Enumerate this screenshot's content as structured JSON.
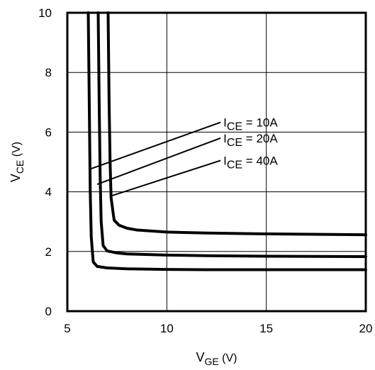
{
  "chart_data": {
    "type": "line",
    "xlabel": {
      "main": "V",
      "sub": "GE",
      "unit": " (V)"
    },
    "ylabel": {
      "main": "V",
      "sub": "CE",
      "unit": " (V)"
    },
    "xlim": [
      5,
      20
    ],
    "ylim": [
      0,
      10
    ],
    "xticks": [
      "5",
      "10",
      "15",
      "20"
    ],
    "yticks": [
      "0",
      "2",
      "4",
      "6",
      "8",
      "10"
    ],
    "grid": true,
    "series": [
      {
        "name": "I_CE = 10A",
        "label": {
          "main": "I",
          "sub": "CE",
          "rest": " = 10A"
        },
        "x": [
          6.05,
          6.1,
          6.15,
          6.2,
          6.3,
          6.5,
          7.0,
          8.0,
          10.0,
          12.0,
          15.0,
          20.0
        ],
        "y": [
          10.0,
          7.0,
          4.0,
          2.5,
          1.65,
          1.5,
          1.45,
          1.42,
          1.4,
          1.39,
          1.39,
          1.39
        ]
      },
      {
        "name": "I_CE = 20A",
        "label": {
          "main": "I",
          "sub": "CE",
          "rest": " = 20A"
        },
        "x": [
          6.55,
          6.6,
          6.65,
          6.7,
          6.8,
          7.0,
          7.5,
          8.0,
          10.0,
          12.0,
          15.0,
          20.0
        ],
        "y": [
          10.0,
          7.0,
          4.5,
          3.0,
          2.2,
          2.02,
          1.95,
          1.92,
          1.88,
          1.86,
          1.84,
          1.83
        ]
      },
      {
        "name": "I_CE = 40A",
        "label": {
          "main": "I",
          "sub": "CE",
          "rest": " = 40A"
        },
        "x": [
          7.05,
          7.1,
          7.15,
          7.2,
          7.35,
          7.6,
          8.0,
          8.5,
          10.0,
          12.0,
          15.0,
          20.0
        ],
        "y": [
          10.0,
          7.0,
          5.0,
          3.8,
          3.05,
          2.88,
          2.78,
          2.72,
          2.65,
          2.62,
          2.59,
          2.56
        ]
      }
    ],
    "annotations": [
      {
        "series": 0,
        "from": [
          6.1,
          4.75
        ],
        "to": [
          12.7,
          6.33
        ]
      },
      {
        "series": 1,
        "from": [
          6.5,
          4.25
        ],
        "to": [
          12.7,
          5.8
        ]
      },
      {
        "series": 2,
        "from": [
          7.15,
          3.85
        ],
        "to": [
          12.7,
          5.05
        ]
      }
    ]
  }
}
